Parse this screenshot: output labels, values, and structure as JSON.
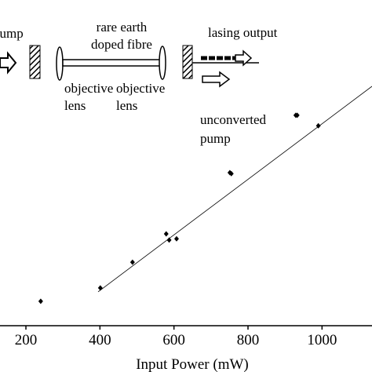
{
  "chart_data": {
    "type": "scatter",
    "x_label": "Input Power (mW)",
    "x": [
      240,
      401,
      488,
      579,
      587,
      607,
      751,
      755,
      929,
      933,
      990
    ],
    "values": [
      7.5,
      11.6,
      19.5,
      28.2,
      26.3,
      26.7,
      47,
      46.7,
      64.6,
      64.6,
      61.4
    ],
    "color": "#000000",
    "xlim": [
      130,
      1135
    ],
    "xticks": [
      200,
      400,
      600,
      800,
      1000
    ],
    "ylim": [
      0,
      100
    ],
    "fit_line": {
      "x": [
        395,
        1135
      ],
      "y": [
        10.4,
        73.5
      ]
    },
    "diagram": {
      "pump_in": "pump",
      "fibre_1": "rare earth",
      "fibre_2": "doped fibre",
      "output": "lasing output",
      "lens_a_1": "objective",
      "lens_a_2": "lens",
      "lens_b_1": "objective",
      "lens_b_2": "lens",
      "unconverted_1": "unconverted",
      "unconverted_2": "pump"
    }
  }
}
